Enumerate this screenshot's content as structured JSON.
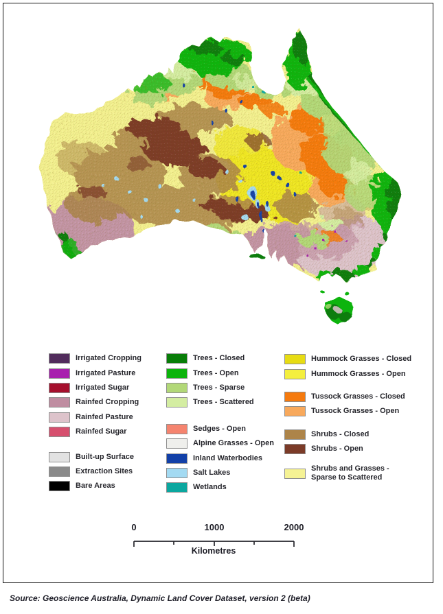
{
  "legend": {
    "columns": [
      {
        "groups": [
          [
            {
              "label": "Irrigated Cropping",
              "color": "#512c5c"
            },
            {
              "label": "Irrigated Pasture",
              "color": "#a81fae"
            },
            {
              "label": "Irrigated Sugar",
              "color": "#a50f2d"
            },
            {
              "label": "Rainfed Cropping",
              "color": "#bf8da1"
            },
            {
              "label": "Rainfed Pasture",
              "color": "#ddc3cb"
            },
            {
              "label": "Rainfed Sugar",
              "color": "#d64f6e"
            }
          ],
          [
            {
              "label": "Built-up Surface",
              "color": "#e2e2e2"
            },
            {
              "label": "Extraction Sites",
              "color": "#8a8a8a"
            },
            {
              "label": "Bare Areas",
              "color": "#000000"
            }
          ]
        ]
      },
      {
        "groups": [
          [
            {
              "label": "Trees - Closed",
              "color": "#087d08"
            },
            {
              "label": "Trees - Open",
              "color": "#0cb40c"
            },
            {
              "label": "Trees - Sparse",
              "color": "#b2d878"
            },
            {
              "label": "Trees - Scattered",
              "color": "#d4eda2"
            }
          ],
          [
            {
              "label": "Sedges - Open",
              "color": "#f5846f"
            },
            {
              "label": "Alpine Grasses - Open",
              "color": "#efefec"
            },
            {
              "label": "Inland Waterbodies",
              "color": "#1240a8"
            },
            {
              "label": "Salt Lakes",
              "color": "#a3daf2"
            },
            {
              "label": "Wetlands",
              "color": "#0ba79f"
            }
          ]
        ]
      },
      {
        "groups": [
          [
            {
              "label": "Hummock Grasses - Closed",
              "color": "#e7dc13"
            },
            {
              "label": "Hummock Grasses - Open",
              "color": "#f4ef3e"
            }
          ],
          [
            {
              "label": "Tussock Grasses - Closed",
              "color": "#f57a0e"
            },
            {
              "label": "Tussock Grasses - Open",
              "color": "#f8a95c"
            }
          ],
          [
            {
              "label": "Shrubs - Closed",
              "color": "#ad8449"
            },
            {
              "label": "Shrubs - Open",
              "color": "#7b3b28"
            }
          ],
          [
            {
              "label": "Shrubs and Grasses -\nSparse to Scattered",
              "color": "#f5f294"
            }
          ]
        ]
      }
    ]
  },
  "scale_bar": {
    "ticks": [
      "0",
      "1000",
      "2000"
    ],
    "unit": "Kilometres"
  },
  "source": "Source: Geoscience Australia, Dynamic Land Cover Dataset, version 2 (beta)",
  "map": {
    "land_base_color": "#f3f08f",
    "background_color": "#ffffff"
  }
}
